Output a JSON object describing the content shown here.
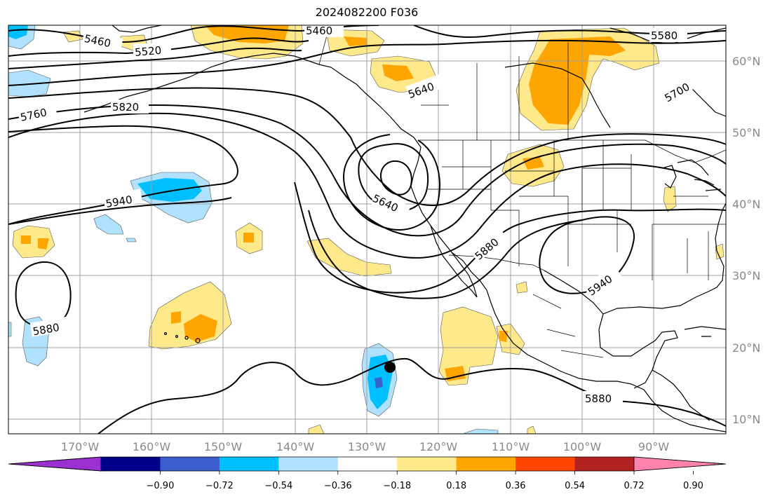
{
  "title": "2024082200 F036",
  "lat_labels": [
    "60°N",
    "50°N",
    "40°N",
    "30°N",
    "20°N",
    "10°N"
  ],
  "lon_labels": [
    "170°W",
    "160°W",
    "150°W",
    "140°W",
    "130°W",
    "120°W",
    "110°W",
    "100°W",
    "90°W"
  ],
  "contour_labels": [
    "5460",
    "5460",
    "5520",
    "5580",
    "5640",
    "5700",
    "5760",
    "5820",
    "5940",
    "5640",
    "5880",
    "5940",
    "5880",
    "5880"
  ],
  "colorbar": {
    "tick_labels": [
      "−0.90",
      "−0.72",
      "−0.54",
      "−0.36",
      "−0.18",
      "0.18",
      "0.36",
      "0.54",
      "0.72",
      "0.90"
    ],
    "colors": [
      "#9b30d0",
      "#00008b",
      "#3a5fcd",
      "#00bfff",
      "#b0e2ff",
      "#ffffff",
      "#ffe98a",
      "#ffa500",
      "#ff4500",
      "#b22222",
      "#ff82ab"
    ]
  },
  "colors": {
    "light_yellow": "#ffe98a",
    "orange": "#ffa500",
    "light_blue": "#b0e2ff",
    "cyan": "#00bfff",
    "blue": "#3a5fcd",
    "grid": "#a0a0a0"
  }
}
